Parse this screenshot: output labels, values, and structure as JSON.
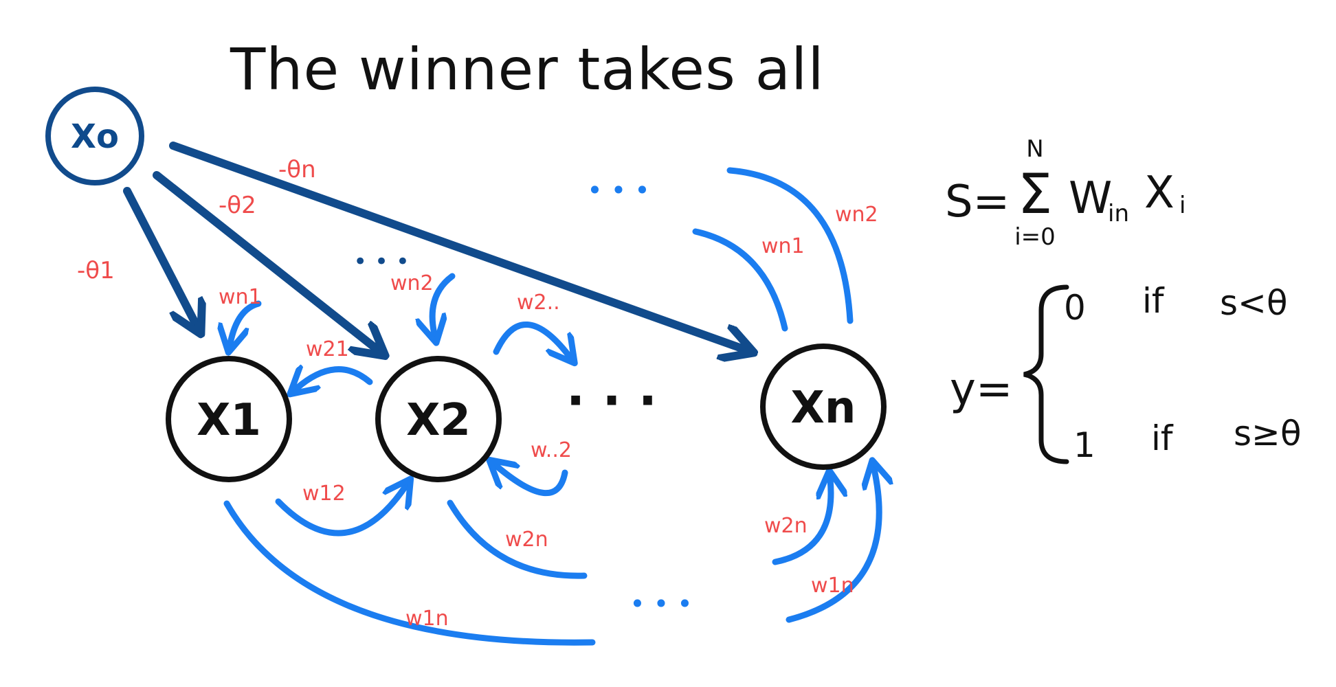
{
  "title": "The winner takes all",
  "nodes": {
    "x0": "Xo",
    "x1": "X1",
    "x2": "X2",
    "xn": "Xn"
  },
  "ellipsis": {
    "row": "· · ·",
    "top_x2": "• • •",
    "top_xn": "• • •",
    "bottom": "• • •"
  },
  "threshold_labels": {
    "t1": "-θ1",
    "t2": "-θ2",
    "tn": "-θn"
  },
  "weight_labels": {
    "wn1_self": "wn1",
    "wn2_self": "wn2",
    "w21": "w21",
    "w2dots": "w2..",
    "wdots2": "w..2",
    "w12": "w12",
    "w2n": "w2n",
    "w1n_bottom": "w1n",
    "wn1_right": "wn1",
    "wn2_right": "wn2",
    "w2n_small": "w2n",
    "w1n_small": "w1n"
  },
  "formula": {
    "lhs": "S=",
    "sum_top": "N",
    "sum_symbol": "Σ",
    "sum_bottom": "i=0",
    "term_w": "W",
    "term_w_sub": "in",
    "term_x": "X",
    "term_x_sub": "i"
  },
  "piecewise": {
    "lhs": "y=",
    "case0_value": "0",
    "case0_if": "if",
    "case0_cond": "s<θ",
    "case1_value": "1",
    "case1_if": "if",
    "case1_cond": "s≥θ"
  },
  "colors": {
    "ink": "#111111",
    "dark_blue": "#114b8c",
    "bright_blue": "#1b7df0",
    "label_red": "#ef4b4b"
  }
}
